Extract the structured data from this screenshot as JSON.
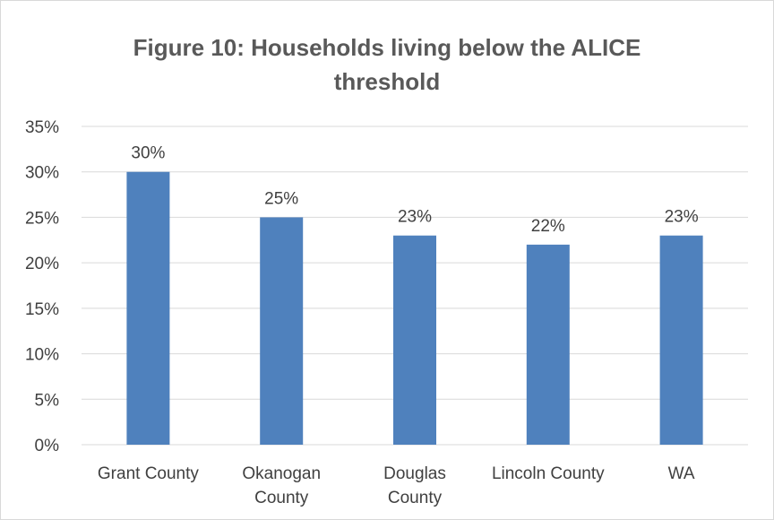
{
  "chart_data": {
    "type": "bar",
    "title_lines": [
      "Figure 10: Households living below the ALICE",
      "threshold"
    ],
    "categories": [
      [
        "Grant County"
      ],
      [
        "Okanogan",
        "County"
      ],
      [
        "Douglas",
        "County"
      ],
      [
        "Lincoln County"
      ],
      [
        "WA"
      ]
    ],
    "values": [
      30,
      25,
      23,
      22,
      23
    ],
    "data_labels": [
      "30%",
      "25%",
      "23%",
      "22%",
      "23%"
    ],
    "y_ticks": [
      "0%",
      "5%",
      "10%",
      "15%",
      "20%",
      "25%",
      "30%",
      "35%"
    ],
    "ylim": [
      0,
      35
    ],
    "y_step": 5,
    "grid": true,
    "legend": "none",
    "bar_color": "#4f81bd",
    "grid_color": "#d9d9d9"
  }
}
